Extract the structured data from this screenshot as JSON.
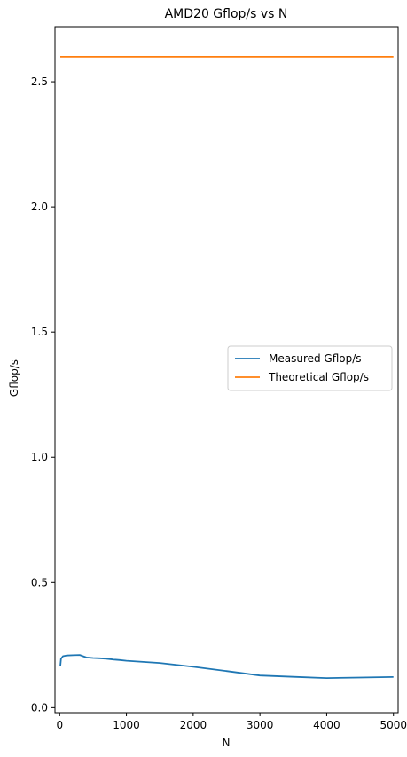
{
  "chart_data": {
    "type": "line",
    "title": "AMD20 Gflop/s vs N",
    "xlabel": "N",
    "ylabel": "Gflop/s",
    "xlim": [
      -70,
      5070
    ],
    "ylim": [
      -0.02,
      2.72
    ],
    "xticks": [
      0,
      1000,
      2000,
      3000,
      4000,
      5000
    ],
    "yticks": [
      0.0,
      0.5,
      1.0,
      1.5,
      2.0,
      2.5
    ],
    "ytick_labels": [
      "0.0",
      "0.5",
      "1.0",
      "1.5",
      "2.0",
      "2.5"
    ],
    "grid": false,
    "legend_position": "center-right",
    "series": [
      {
        "name": "Measured Gflop/s",
        "color": "#1f77b4",
        "x": [
          10,
          20,
          50,
          100,
          200,
          300,
          400,
          500,
          600,
          700,
          800,
          900,
          1000,
          1500,
          2000,
          2500,
          3000,
          3500,
          4000,
          4500,
          5000
        ],
        "y": [
          0.165,
          0.195,
          0.205,
          0.208,
          0.209,
          0.21,
          0.2,
          0.198,
          0.197,
          0.195,
          0.192,
          0.19,
          0.187,
          0.178,
          0.163,
          0.146,
          0.128,
          0.123,
          0.118,
          0.12,
          0.122
        ]
      },
      {
        "name": "Theoretical Gflop/s",
        "color": "#ff7f0e",
        "x": [
          10,
          5000
        ],
        "y": [
          2.6,
          2.6
        ]
      }
    ]
  }
}
